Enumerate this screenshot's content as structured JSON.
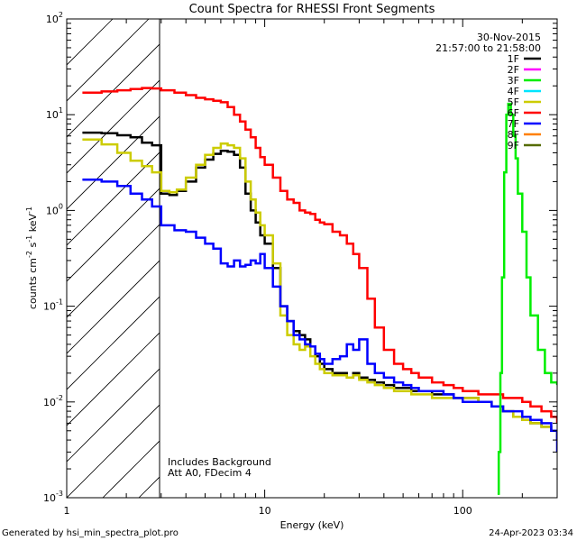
{
  "chart_data": {
    "type": "line",
    "title": "Count Spectra for RHESSI Front Segments",
    "xlabel": "Energy (keV)",
    "ylabel_parts": [
      "counts cm",
      "-2",
      " s",
      "-1",
      " keV",
      "-1"
    ],
    "xscale": "log",
    "yscale": "log",
    "xlim": [
      1,
      300
    ],
    "ylim": [
      0.001,
      100
    ],
    "x_ticks": [
      {
        "v": 1,
        "label": "1"
      },
      {
        "v": 10,
        "label": "10"
      },
      {
        "v": 100,
        "label": "100"
      }
    ],
    "y_ticks": [
      {
        "v": 0.001,
        "base": "10",
        "exp": "-3"
      },
      {
        "v": 0.01,
        "base": "10",
        "exp": "-2"
      },
      {
        "v": 0.1,
        "base": "10",
        "exp": "-1"
      },
      {
        "v": 1,
        "base": "10",
        "exp": "0"
      },
      {
        "v": 10,
        "base": "10",
        "exp": "1"
      },
      {
        "v": 100,
        "base": "10",
        "exp": "2"
      }
    ],
    "hatched_region_keV": [
      1,
      3
    ],
    "date_label": "30-Nov-2015",
    "time_label": "21:57:00 to 21:58:00",
    "annotations": [
      "Includes Background",
      "Att A0, FDecim 4"
    ],
    "footer_left": "Generated by hsi_min_spectra_plot.pro",
    "footer_right": "24-Apr-2023 03:34",
    "legend": [
      {
        "name": "1F",
        "color": "#000000"
      },
      {
        "name": "2F",
        "color": "#ff00ff"
      },
      {
        "name": "3F",
        "color": "#00ee00"
      },
      {
        "name": "4F",
        "color": "#00e5ff"
      },
      {
        "name": "5F",
        "color": "#cccc00"
      },
      {
        "name": "6F",
        "color": "#ff0000"
      },
      {
        "name": "7F",
        "color": "#0000ff"
      },
      {
        "name": "8F",
        "color": "#ff8000"
      },
      {
        "name": "9F",
        "color": "#556b00"
      }
    ],
    "series": [
      {
        "name": "1F",
        "color": "#000000",
        "x": [
          1.2,
          1.5,
          1.8,
          2.1,
          2.4,
          2.7,
          3.0,
          3.3,
          3.6,
          4.0,
          4.5,
          5.0,
          5.5,
          6.0,
          6.5,
          7.0,
          7.5,
          8.0,
          8.5,
          9.0,
          9.5,
          10,
          11,
          12,
          13,
          14,
          15,
          16,
          17,
          18,
          19,
          20,
          22,
          24,
          26,
          28,
          30,
          33,
          36,
          40,
          45,
          50,
          55,
          60,
          70,
          80,
          90,
          100,
          120,
          140,
          160,
          180,
          200,
          220,
          250,
          280,
          300
        ],
        "y": [
          6.5,
          6.4,
          6.1,
          5.8,
          5.1,
          4.8,
          1.5,
          1.45,
          1.6,
          2.0,
          2.8,
          3.4,
          3.9,
          4.2,
          4.1,
          3.8,
          2.8,
          1.5,
          1.0,
          0.75,
          0.55,
          0.45,
          0.25,
          0.1,
          0.07,
          0.055,
          0.05,
          0.045,
          0.038,
          0.03,
          0.025,
          0.022,
          0.02,
          0.02,
          0.018,
          0.02,
          0.018,
          0.017,
          0.016,
          0.015,
          0.014,
          0.014,
          0.013,
          0.013,
          0.012,
          0.012,
          0.011,
          0.011,
          0.01,
          0.009,
          0.008,
          0.007,
          0.0065,
          0.006,
          0.0055,
          0.005,
          0.004
        ]
      },
      {
        "name": "5F",
        "color": "#cccc00",
        "x": [
          1.2,
          1.5,
          1.8,
          2.1,
          2.4,
          2.7,
          3.0,
          3.3,
          3.6,
          4.0,
          4.5,
          5.0,
          5.5,
          6.0,
          6.5,
          7.0,
          7.5,
          8.0,
          8.5,
          9.0,
          9.5,
          10,
          11,
          12,
          13,
          14,
          15,
          16,
          17,
          18,
          19,
          20,
          22,
          24,
          26,
          28,
          30,
          33,
          36,
          40,
          45,
          50,
          55,
          60,
          70,
          80,
          90,
          100,
          120,
          140,
          160,
          180,
          200,
          220,
          250,
          280,
          300
        ],
        "y": [
          5.5,
          4.9,
          4.0,
          3.3,
          2.9,
          2.5,
          1.6,
          1.55,
          1.65,
          2.2,
          3.0,
          3.8,
          4.5,
          5.0,
          4.8,
          4.5,
          3.5,
          2.0,
          1.3,
          0.95,
          0.7,
          0.55,
          0.28,
          0.08,
          0.05,
          0.04,
          0.035,
          0.038,
          0.03,
          0.025,
          0.022,
          0.02,
          0.019,
          0.019,
          0.018,
          0.019,
          0.017,
          0.016,
          0.015,
          0.014,
          0.013,
          0.013,
          0.012,
          0.012,
          0.011,
          0.011,
          0.011,
          0.011,
          0.01,
          0.009,
          0.008,
          0.007,
          0.0065,
          0.006,
          0.0055,
          0.005,
          0.0045
        ]
      },
      {
        "name": "6F",
        "color": "#ff0000",
        "x": [
          1.2,
          1.5,
          1.8,
          2.1,
          2.4,
          2.7,
          3.0,
          3.5,
          4.0,
          4.5,
          5.0,
          5.5,
          6.0,
          6.5,
          7.0,
          7.5,
          8.0,
          8.5,
          9.0,
          9.5,
          10,
          11,
          12,
          13,
          14,
          15,
          16,
          17,
          18,
          19,
          20,
          22,
          24,
          26,
          28,
          30,
          33,
          36,
          40,
          45,
          50,
          55,
          60,
          70,
          80,
          90,
          100,
          120,
          140,
          160,
          180,
          200,
          220,
          250,
          280,
          300
        ],
        "y": [
          17,
          17.5,
          18,
          18.5,
          19,
          18.8,
          18,
          17,
          16,
          15,
          14.5,
          14,
          13.5,
          12,
          10,
          8.5,
          7,
          5.8,
          4.5,
          3.6,
          3.0,
          2.2,
          1.6,
          1.3,
          1.2,
          1.0,
          0.95,
          0.92,
          0.8,
          0.75,
          0.72,
          0.6,
          0.55,
          0.45,
          0.35,
          0.25,
          0.12,
          0.06,
          0.035,
          0.025,
          0.022,
          0.02,
          0.018,
          0.016,
          0.015,
          0.014,
          0.013,
          0.012,
          0.012,
          0.011,
          0.011,
          0.01,
          0.009,
          0.008,
          0.007,
          0.006
        ]
      },
      {
        "name": "7F",
        "color": "#0000ff",
        "x": [
          1.2,
          1.5,
          1.8,
          2.1,
          2.4,
          2.7,
          3.0,
          3.5,
          4.0,
          4.5,
          5.0,
          5.5,
          6.0,
          6.5,
          7.0,
          7.5,
          8.0,
          8.5,
          9.0,
          9.5,
          10,
          11,
          12,
          13,
          14,
          15,
          16,
          17,
          18,
          19,
          20,
          22,
          24,
          26,
          28,
          30,
          33,
          36,
          40,
          45,
          50,
          55,
          60,
          70,
          80,
          90,
          100,
          120,
          140,
          160,
          180,
          200,
          220,
          250,
          280,
          300
        ],
        "y": [
          2.1,
          2.0,
          1.8,
          1.5,
          1.3,
          1.1,
          0.7,
          0.62,
          0.6,
          0.52,
          0.45,
          0.4,
          0.28,
          0.26,
          0.3,
          0.26,
          0.27,
          0.3,
          0.28,
          0.35,
          0.25,
          0.16,
          0.1,
          0.07,
          0.05,
          0.045,
          0.04,
          0.038,
          0.032,
          0.028,
          0.025,
          0.028,
          0.03,
          0.04,
          0.035,
          0.045,
          0.025,
          0.02,
          0.018,
          0.016,
          0.015,
          0.014,
          0.013,
          0.013,
          0.012,
          0.011,
          0.01,
          0.01,
          0.009,
          0.008,
          0.008,
          0.007,
          0.0065,
          0.006,
          0.005,
          0.003
        ]
      },
      {
        "name": "3F",
        "color": "#00ee00",
        "x": [
          150,
          152,
          155,
          158,
          162,
          166,
          170,
          175,
          180,
          185,
          190,
          200,
          210,
          220,
          240,
          260,
          280,
          300
        ],
        "y": [
          0.0011,
          0.003,
          0.02,
          0.2,
          2.5,
          10,
          13,
          10,
          6,
          3.5,
          1.5,
          0.6,
          0.2,
          0.08,
          0.035,
          0.02,
          0.016,
          0.015
        ]
      }
    ]
  }
}
